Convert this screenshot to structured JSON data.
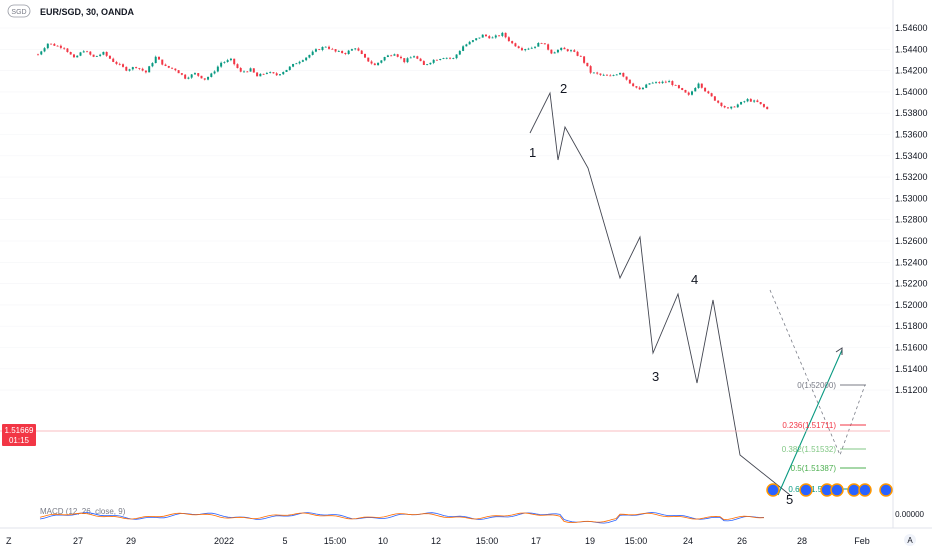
{
  "header": {
    "currency_badge": "SGD",
    "title": "EUR/SGD, 30, OANDA"
  },
  "chart_data": {
    "type": "candlestick",
    "title": "EUR/SGD, 30, OANDA",
    "ylim": [
      1.5105,
      1.5465
    ],
    "yticks": [
      "1.54600",
      "1.54400",
      "1.54200",
      "1.54000",
      "1.53800",
      "1.53600",
      "1.53400",
      "1.53200",
      "1.53000",
      "1.52800",
      "1.52600",
      "1.52400",
      "1.52200",
      "1.52000",
      "1.51800",
      "1.51600",
      "1.51400",
      "1.51200"
    ],
    "xticks": [
      "27",
      "29",
      "2022",
      "5",
      "15:00",
      "10",
      "12",
      "15:00",
      "17",
      "19",
      "15:00",
      "24",
      "26",
      "28",
      "Feb"
    ],
    "price_path": [
      [
        0,
        1.5365
      ],
      [
        3,
        1.5405
      ],
      [
        8,
        1.539
      ],
      [
        11,
        1.535
      ],
      [
        14,
        1.538
      ],
      [
        17,
        1.5355
      ],
      [
        20,
        1.537
      ],
      [
        23,
        1.534
      ],
      [
        27,
        1.531
      ],
      [
        30,
        1.532
      ],
      [
        33,
        1.53
      ],
      [
        36,
        1.5355
      ],
      [
        39,
        1.532
      ],
      [
        42,
        1.531
      ],
      [
        45,
        1.528
      ],
      [
        48,
        1.5295
      ],
      [
        51,
        1.5275
      ],
      [
        53,
        1.5292
      ],
      [
        56,
        1.5335
      ],
      [
        59,
        1.5345
      ],
      [
        62,
        1.53
      ],
      [
        65,
        1.531
      ],
      [
        67,
        1.5285
      ],
      [
        70,
        1.53
      ],
      [
        73,
        1.529
      ],
      [
        76,
        1.531
      ],
      [
        79,
        1.5335
      ],
      [
        82,
        1.5355
      ],
      [
        85,
        1.538
      ],
      [
        88,
        1.5395
      ],
      [
        91,
        1.5375
      ],
      [
        94,
        1.537
      ],
      [
        97,
        1.539
      ],
      [
        100,
        1.535
      ],
      [
        103,
        1.5325
      ],
      [
        106,
        1.5355
      ],
      [
        109,
        1.537
      ],
      [
        112,
        1.534
      ],
      [
        115,
        1.536
      ],
      [
        118,
        1.5325
      ],
      [
        121,
        1.5345
      ],
      [
        124,
        1.5355
      ],
      [
        127,
        1.535
      ],
      [
        130,
        1.5395
      ],
      [
        133,
        1.5415
      ],
      [
        136,
        1.5435
      ],
      [
        139,
        1.5425
      ],
      [
        142,
        1.544
      ],
      [
        145,
        1.5405
      ],
      [
        148,
        1.5385
      ],
      [
        151,
        1.539
      ],
      [
        154,
        1.541
      ],
      [
        157,
        1.5372
      ],
      [
        160,
        1.5385
      ],
      [
        163,
        1.5378
      ],
      [
        166,
        1.5355
      ],
      [
        169,
        1.53
      ],
      [
        172,
        1.529
      ],
      [
        175,
        1.5285
      ],
      [
        178,
        1.53
      ],
      [
        181,
        1.5262
      ],
      [
        184,
        1.5235
      ],
      [
        187,
        1.526
      ],
      [
        190,
        1.5262
      ],
      [
        193,
        1.5266
      ],
      [
        196,
        1.524
      ],
      [
        199,
        1.5215
      ],
      [
        202,
        1.5262
      ],
      [
        205,
        1.522
      ],
      [
        208,
        1.519
      ],
      [
        211,
        1.5165
      ],
      [
        214,
        1.5182
      ],
      [
        217,
        1.52
      ],
      [
        220,
        1.519
      ],
      [
        223,
        1.5165
      ]
    ],
    "wave_labels": [
      "1",
      "2",
      "3",
      "4",
      "5"
    ],
    "fibonacci": [
      {
        "label": "0(1.52000)",
        "color": "#787b86"
      },
      {
        "label": "0.236(1.51711)",
        "color": "#f23645"
      },
      {
        "label": "0.382(1.51532)",
        "color": "#81c784"
      },
      {
        "label": "0.5(1.51387)",
        "color": "#4caf50"
      },
      {
        "label": "0.618(1.51...)",
        "color": "#089981"
      }
    ],
    "last_price": {
      "value": "1.51669",
      "countdown": "01:15",
      "color": "#f23645"
    },
    "indicator": {
      "label": "MACD (12, 26, close, 9)",
      "zero_label": "0.00000"
    }
  },
  "footer": {
    "left_icon": "Z",
    "right_icon": "A"
  }
}
